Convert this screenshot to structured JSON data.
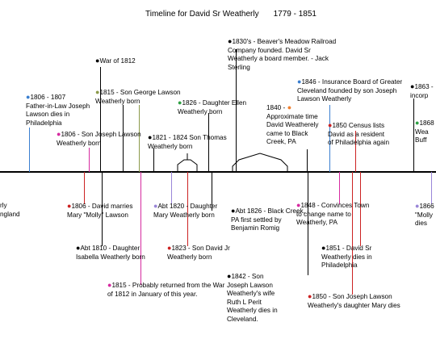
{
  "title": {
    "name": "Timeline for David Sr Weatherly",
    "range": "1779 - 1851"
  },
  "colors": {
    "black": "#000000",
    "blue": "#3a7fd0",
    "olive": "#8c9a4a",
    "green": "#2ea043",
    "orange": "#f08030",
    "magenta": "#d62aa0",
    "red": "#cc2222",
    "lavender": "#9a86d8",
    "teal": "#30a8b0"
  },
  "events": [
    {
      "id": "e1830s",
      "lines": [
        "1830's - Beaver's Meadow Railroad",
        "Company founded.  David Sr",
        "Weatherly a board member. - Jack",
        "Sterling"
      ],
      "dot_color": "black",
      "marker": "leading"
    },
    {
      "id": "e1812",
      "lines": [
        "War of 1812"
      ],
      "dot_color": "black",
      "marker": "leading"
    },
    {
      "id": "e1806a",
      "lines": [
        "1806 - 1807",
        "Father-in-Law Joseph",
        "Lawson dies in",
        "Philadelphia"
      ],
      "dot_color": "blue",
      "marker": "leading"
    },
    {
      "id": "e1815a",
      "lines": [
        "1815 - Son George Lawson",
        "Weatherly born"
      ],
      "dot_color": "olive",
      "marker": "leading"
    },
    {
      "id": "e1826a",
      "lines": [
        "1826 - Daughter Ellen",
        "Weatherly born"
      ],
      "dot_color": "green",
      "marker": "leading"
    },
    {
      "id": "e1846",
      "lines": [
        "1846 - Insurance Board of Greater",
        "Cleveland founded by son Joseph",
        "Lawson Weatherly"
      ],
      "dot_color": "blue",
      "marker": "leading"
    },
    {
      "id": "e1863",
      "lines": [
        "1863 -",
        "incorp"
      ],
      "dot_color": "black",
      "marker": "leading"
    },
    {
      "id": "e1840",
      "lines": [
        "1840 -",
        "Approximate time",
        "David Weatherely",
        "came to Black",
        "Creek, PA"
      ],
      "dot_color": "orange",
      "marker": "trailing"
    },
    {
      "id": "e1806b",
      "lines": [
        "1806 - Son Joseph Lawson",
        "Weatherly born"
      ],
      "dot_color": "magenta",
      "marker": "leading"
    },
    {
      "id": "e1821",
      "lines": [
        "1821 - 1824 Son Thomas",
        "Weatherly born"
      ],
      "dot_color": "black",
      "marker": "leading"
    },
    {
      "id": "e1850a",
      "lines": [
        "1850 Census lists",
        "David as a resident",
        "of Philadelphia again"
      ],
      "dot_color": "red",
      "marker": "leading"
    },
    {
      "id": "e1868",
      "lines": [
        "1868",
        "Wea",
        "Buff"
      ],
      "dot_color": "green",
      "marker": "leading"
    },
    {
      "id": "eleft",
      "lines": [
        "rly",
        "ngland"
      ],
      "dot_color": "none",
      "marker": "none"
    },
    {
      "id": "e1806c",
      "lines": [
        "1806 - David marries",
        "Mary \"Molly\" Lawson"
      ],
      "dot_color": "red",
      "marker": "leading"
    },
    {
      "id": "e1820",
      "lines": [
        "Abt 1820 - Daughter",
        "Mary Weatherly born"
      ],
      "dot_color": "lavender",
      "marker": "leading"
    },
    {
      "id": "e1848",
      "lines": [
        "1848 - Convinces Town",
        "to change name to",
        "Weatherly, PA"
      ],
      "dot_color": "magenta",
      "marker": "leading"
    },
    {
      "id": "e1866",
      "lines": [
        "1866",
        "\"Molly",
        "dies"
      ],
      "dot_color": "lavender",
      "marker": "leading"
    },
    {
      "id": "e1826b",
      "lines": [
        "Abt 1826 - Black Creek,",
        "PA first settled by",
        "Benjamin Romig"
      ],
      "dot_color": "black",
      "marker": "leading"
    },
    {
      "id": "e1810",
      "lines": [
        "Abt 1810 - Daughter",
        "Isabella Weatherly born"
      ],
      "dot_color": "black",
      "marker": "leading"
    },
    {
      "id": "e1823",
      "lines": [
        "1823 - Son David Jr",
        "Weatherly born"
      ],
      "dot_color": "red",
      "marker": "leading"
    },
    {
      "id": "e1851",
      "lines": [
        "1851 - David Sr",
        "Weatherly dies in",
        "Philadelphia"
      ],
      "dot_color": "black",
      "marker": "leading"
    },
    {
      "id": "e1815b",
      "lines": [
        "1815 - Probably returned from the War",
        "of 1812 in January of this year."
      ],
      "dot_color": "magenta",
      "marker": "leading"
    },
    {
      "id": "e1842",
      "lines": [
        "1842 - Son",
        "Joseph Lawson",
        "Weatherly's wife",
        "Ruth L Perit",
        "Weatherly dies in",
        "Cleveland."
      ],
      "dot_color": "black",
      "marker": "leading"
    },
    {
      "id": "e1850b",
      "lines": [
        "1850 - Son Joseph Lawson",
        "Weatherly's daughter Mary dies"
      ],
      "dot_color": "red",
      "marker": "leading"
    }
  ]
}
